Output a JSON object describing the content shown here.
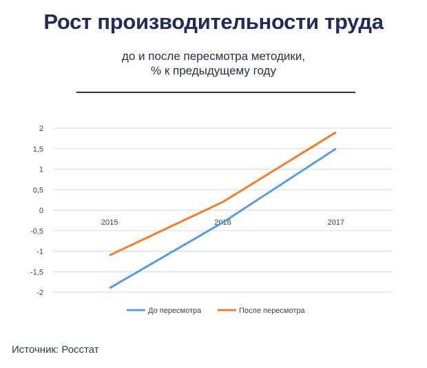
{
  "header": {
    "title": "Рост производительности труда",
    "subtitle_line1": "до и после пересмотра методики,",
    "subtitle_line2": "% к предыдущему году"
  },
  "footer": {
    "source": "Источник: Росстат"
  },
  "chart_data": {
    "type": "line",
    "title": "Рост производительности труда",
    "subtitle": "до и после пересмотра методики, % к предыдущему году",
    "x": [
      "2015",
      "2016",
      "2017"
    ],
    "series": [
      {
        "name": "До пересмотра",
        "values": [
          -1.9,
          -0.3,
          1.5
        ],
        "color": "#5b9bd5"
      },
      {
        "name": "После пересмотра",
        "values": [
          -1.1,
          0.2,
          1.9
        ],
        "color": "#ed7d31"
      }
    ],
    "y_ticks": [
      {
        "value": 2,
        "label": "2"
      },
      {
        "value": 1.5,
        "label": "1,5"
      },
      {
        "value": 1,
        "label": "1"
      },
      {
        "value": 0.5,
        "label": "0,5"
      },
      {
        "value": 0,
        "label": "0"
      },
      {
        "value": -0.5,
        "label": "-0,5"
      },
      {
        "value": -1,
        "label": "-1"
      },
      {
        "value": -1.5,
        "label": "-1,5"
      },
      {
        "value": -2,
        "label": "-2"
      }
    ],
    "ylim": [
      -2,
      2
    ],
    "grid": true,
    "legend": "bottom",
    "xlabel": "",
    "ylabel": ""
  }
}
